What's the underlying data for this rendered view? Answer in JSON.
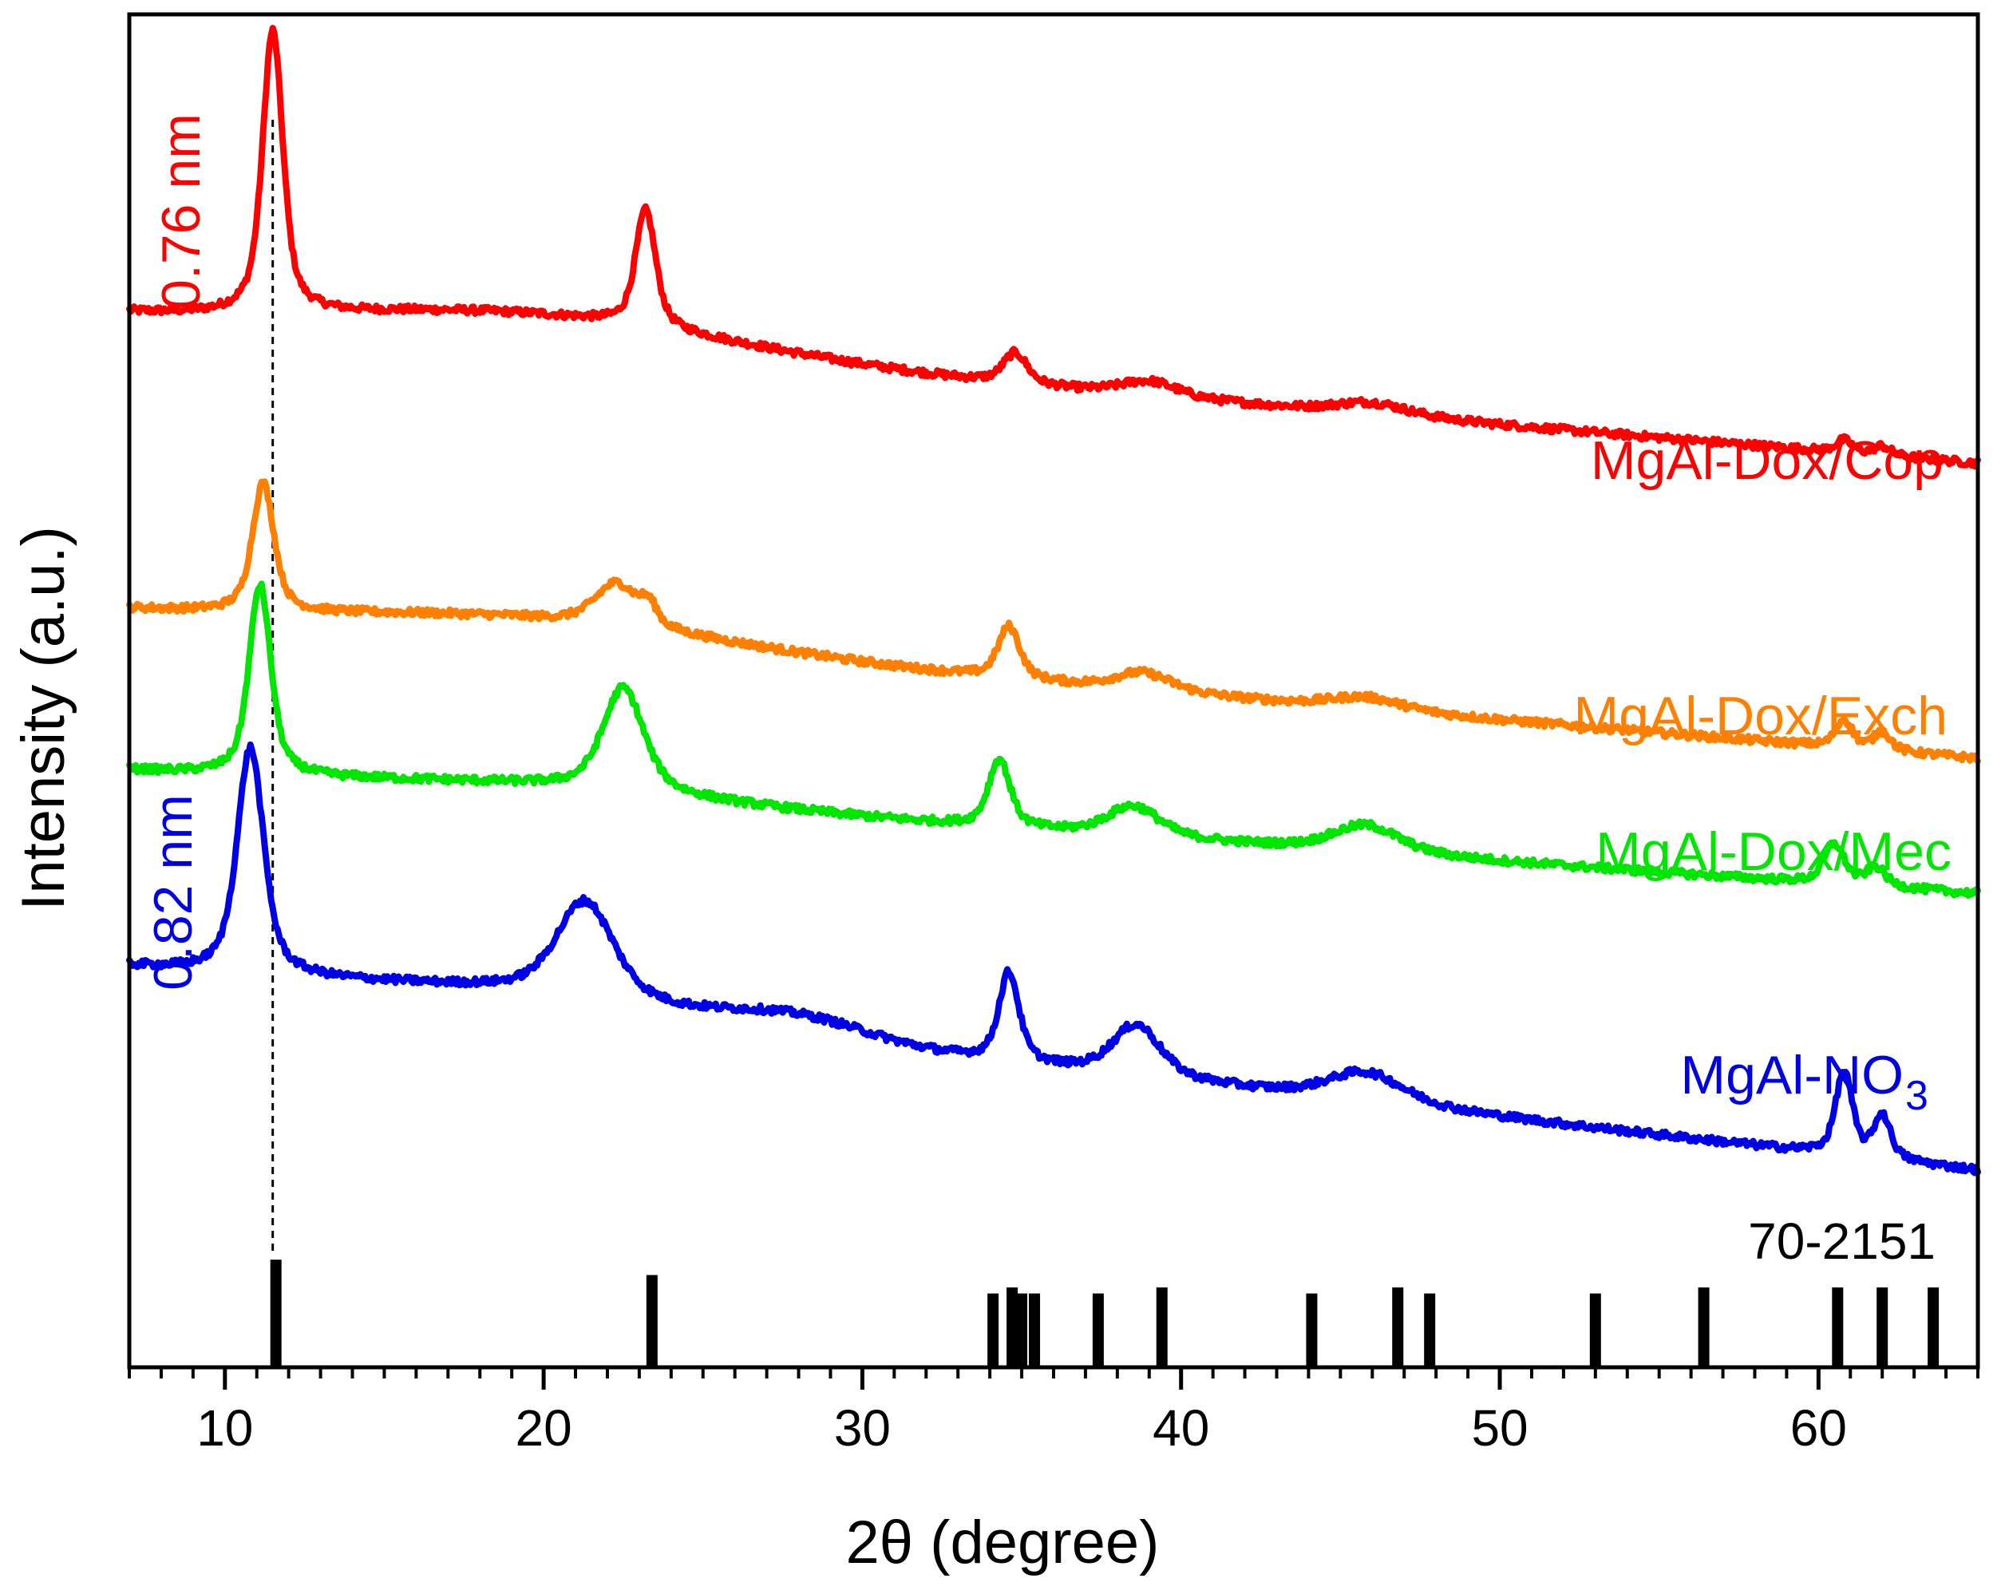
{
  "chart_data": {
    "type": "line",
    "title": "",
    "xlabel": "2θ (degree)",
    "ylabel": "Intensity (a.u.)",
    "xlim": [
      7,
      65
    ],
    "ylim": [
      0,
      22
    ],
    "x_ticks": [
      10,
      20,
      30,
      40,
      50,
      60
    ],
    "x_tick_labels": [
      "10",
      "20",
      "30",
      "40",
      "50",
      "60"
    ],
    "x_minor_step": 1,
    "colors": {
      "MgAl-Dox/Cop": "#ff0000",
      "MgAl-Dox/Exch": "#ff8000",
      "MgAl-Dox/Mec": "#00e600",
      "MgAl-NO3": "#0000e6",
      "reference": "#000000"
    },
    "series": [
      {
        "name": "MgAl-Dox/Cop",
        "label": "MgAl-Dox/Cop",
        "color": "#ff0000",
        "baseline_start": 17.1,
        "baseline_end": 14.7,
        "peaks": [
          [
            11.5,
            4.6,
            0.42
          ],
          [
            23.2,
            1.9,
            0.42
          ],
          [
            34.8,
            0.5,
            0.5
          ],
          [
            39.0,
            0.25,
            1.2
          ],
          [
            46.0,
            0.2,
            1.5
          ],
          [
            60.8,
            0.2,
            0.35
          ],
          [
            62.0,
            0.15,
            0.35
          ]
        ],
        "broad": [
          [
            20.0,
            0.55,
            9.0
          ]
        ]
      },
      {
        "name": "MgAl-Dox/Exch",
        "label": "MgAl-Dox/Exch",
        "color": "#ff8000",
        "baseline_start": 12.3,
        "baseline_end": 9.9,
        "peaks": [
          [
            11.2,
            2.1,
            0.45
          ],
          [
            22.3,
            0.7,
            0.9
          ],
          [
            23.3,
            0.3,
            0.35
          ],
          [
            34.6,
            0.85,
            0.45
          ],
          [
            38.8,
            0.3,
            1.2
          ],
          [
            45.8,
            0.2,
            1.5
          ],
          [
            60.8,
            0.45,
            0.35
          ],
          [
            62.0,
            0.3,
            0.35
          ]
        ],
        "broad": [
          [
            20.0,
            0.4,
            9.0
          ]
        ]
      },
      {
        "name": "MgAl-Dox/Mec",
        "label": "MgAl-Dox/Mec",
        "color": "#00e600",
        "baseline_start": 9.7,
        "baseline_end": 7.7,
        "peaks": [
          [
            11.1,
            3.1,
            0.45
          ],
          [
            22.5,
            1.7,
            0.85
          ],
          [
            34.3,
            1.1,
            0.45
          ],
          [
            38.5,
            0.5,
            1.1
          ],
          [
            45.8,
            0.45,
            1.4
          ],
          [
            60.5,
            0.65,
            0.42
          ],
          [
            61.8,
            0.3,
            0.4
          ]
        ],
        "broad": [
          [
            20.0,
            0.2,
            8.0
          ]
        ]
      },
      {
        "name": "MgAl-NO3",
        "label": "MgAl-NO",
        "label_sub": "3",
        "color": "#0000e6",
        "baseline_start": 6.5,
        "baseline_end": 3.2,
        "peaks": [
          [
            10.8,
            3.7,
            0.55
          ],
          [
            21.3,
            1.6,
            1.2
          ],
          [
            34.6,
            1.45,
            0.42
          ],
          [
            38.6,
            0.85,
            1.0
          ],
          [
            45.8,
            0.5,
            1.6
          ],
          [
            60.8,
            1.35,
            0.35
          ],
          [
            62.0,
            0.7,
            0.35
          ]
        ],
        "broad": [
          [
            20.0,
            0.3,
            8.0
          ],
          [
            28.0,
            0.3,
            3.0
          ]
        ]
      }
    ],
    "reference": {
      "name": "70-2151",
      "label": "70-2151",
      "lines": [
        [
          11.6,
          1.75
        ],
        [
          23.4,
          1.5
        ],
        [
          34.1,
          1.2
        ],
        [
          34.7,
          1.3
        ],
        [
          35.0,
          1.2
        ],
        [
          35.4,
          1.2
        ],
        [
          37.4,
          1.2
        ],
        [
          39.4,
          1.3
        ],
        [
          44.1,
          1.2
        ],
        [
          46.8,
          1.3
        ],
        [
          47.8,
          1.2
        ],
        [
          53.0,
          1.2
        ],
        [
          56.4,
          1.3
        ],
        [
          60.6,
          1.3
        ],
        [
          62.0,
          1.3
        ],
        [
          63.6,
          1.3
        ]
      ]
    },
    "annotations": [
      {
        "text": "0.76 nm",
        "color": "#ff0000",
        "for": "MgAl-Dox/Cop"
      },
      {
        "text": "0.82 nm",
        "color": "#0000e6",
        "for": "MgAl-NO3"
      }
    ],
    "guide_line_x": 11.5
  }
}
